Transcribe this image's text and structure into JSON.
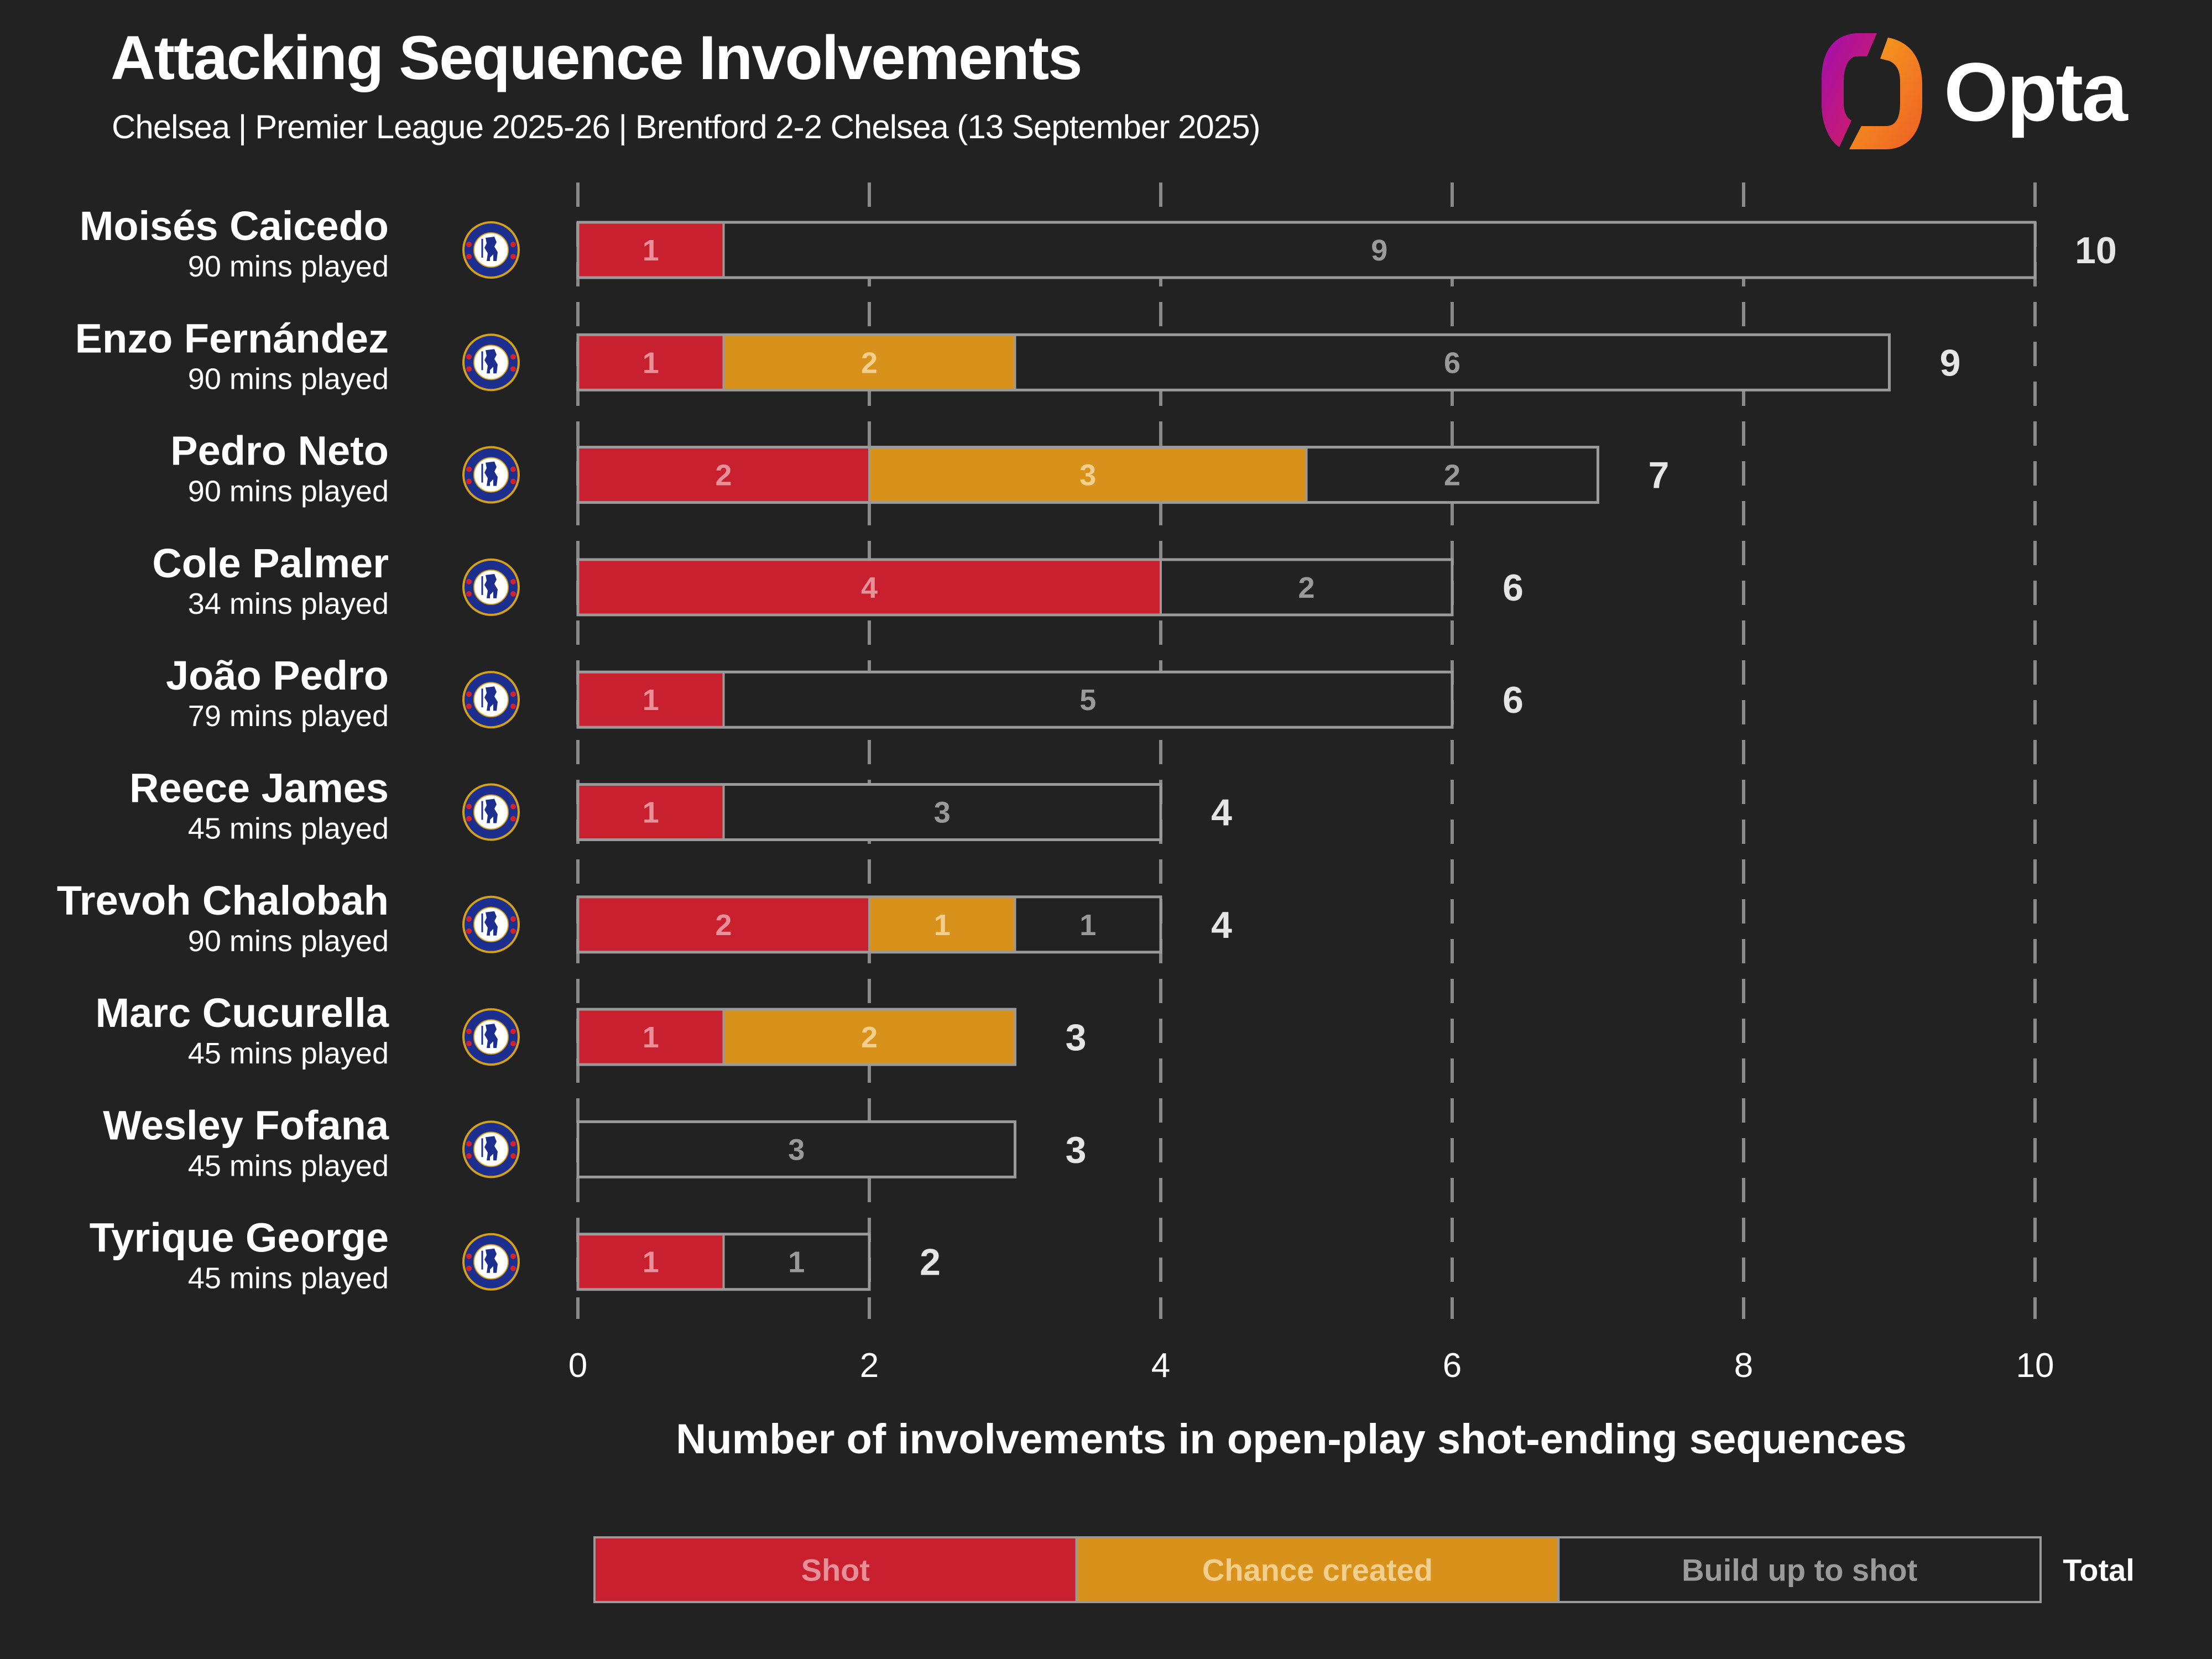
{
  "header": {
    "title": "Attacking Sequence Involvements",
    "subtitle": "Chelsea | Premier League 2025-26 | Brentford 2-2 Chelsea (13 September 2025)",
    "brand": "Opta"
  },
  "colors": {
    "background": "#222222",
    "shot": "#c8202f",
    "chance_created": "#d8921c",
    "build_up": "#222222",
    "bar_outline": "#9a9a9a",
    "grid": "#8a8a8a",
    "shot_text": "#e8909a",
    "chance_text": "#f2cf8c",
    "build_up_text": "#9a9a9a",
    "total_text": "#e6e6e6",
    "crest_blue": "#1c2f8f",
    "crest_gold": "#d4a017",
    "logo_gradient_left": [
      "#a20fb0",
      "#d81f55"
    ],
    "logo_gradient_right": [
      "#f6a51c",
      "#ef5f25"
    ]
  },
  "chart_data": {
    "type": "bar",
    "orientation": "horizontal",
    "stacked": true,
    "title": "Attacking Sequence Involvements",
    "subtitle": "Chelsea | Premier League 2025-26 | Brentford 2-2 Chelsea (13 September 2025)",
    "xlabel": "Number of involvements in open-play shot-ending sequences",
    "ylabel": "",
    "xlim": [
      0,
      10
    ],
    "xticks": [
      0,
      2,
      4,
      6,
      8,
      10
    ],
    "grid": true,
    "grid_style": "dashed-vertical",
    "legend": {
      "placement": "bottom",
      "entries": [
        "Shot",
        "Chance created",
        "Build up to shot"
      ],
      "total_label": "Total"
    },
    "categories": [
      "Moisés Caicedo",
      "Enzo Fernández",
      "Pedro Neto",
      "Cole Palmer",
      "João Pedro",
      "Reece James",
      "Trevoh Chalobah",
      "Marc Cucurella",
      "Wesley Fofana",
      "Tyrique George"
    ],
    "minutes_played": [
      "90 mins played",
      "90 mins played",
      "90 mins played",
      "34 mins played",
      "79 mins played",
      "45 mins played",
      "90 mins played",
      "45 mins played",
      "45 mins played",
      "45 mins played"
    ],
    "team_badge": "Chelsea Football Club",
    "series": [
      {
        "name": "Shot",
        "values": [
          1,
          1,
          2,
          4,
          1,
          1,
          2,
          1,
          0,
          1
        ]
      },
      {
        "name": "Chance created",
        "values": [
          0,
          2,
          3,
          0,
          0,
          0,
          1,
          2,
          0,
          0
        ]
      },
      {
        "name": "Build up to shot",
        "values": [
          9,
          6,
          2,
          2,
          5,
          3,
          1,
          0,
          3,
          1
        ]
      }
    ],
    "totals": [
      10,
      9,
      7,
      6,
      6,
      4,
      4,
      3,
      3,
      2
    ]
  }
}
